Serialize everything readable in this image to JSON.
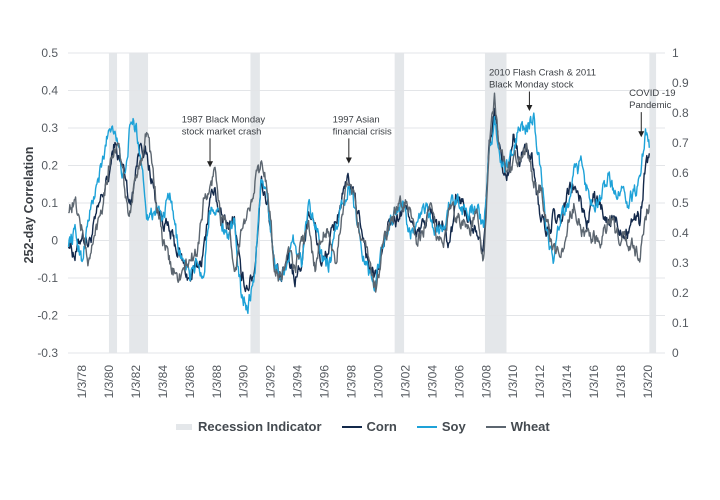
{
  "chart_data": {
    "type": "line",
    "title": "",
    "ylabel": "252-day Correlation",
    "ylim": [
      -0.3,
      0.5
    ],
    "y2lim": [
      0,
      1
    ],
    "yticks": [
      "0.5",
      "0.4",
      "0.3",
      "0.2",
      "0.1",
      "0",
      "-0.1",
      "-0.2",
      "-0.3"
    ],
    "y2ticks": [
      "1",
      "0.9",
      "0.8",
      "0.7",
      "0.6",
      "0.5",
      "0.4",
      "0.3",
      "0.2",
      "0.1",
      "0"
    ],
    "xlim": [
      1977.0,
      2020.6
    ],
    "xticks": [
      {
        "label": "1/3/78",
        "x": 1978.0
      },
      {
        "label": "1/3/80",
        "x": 1980.0
      },
      {
        "label": "1/3/82",
        "x": 1982.0
      },
      {
        "label": "1/3/84",
        "x": 1984.0
      },
      {
        "label": "1/3/86",
        "x": 1986.0
      },
      {
        "label": "1/3/88",
        "x": 1988.0
      },
      {
        "label": "1/3/90",
        "x": 1990.0
      },
      {
        "label": "1/3/92",
        "x": 1992.0
      },
      {
        "label": "1/3/94",
        "x": 1994.0
      },
      {
        "label": "1/3/96",
        "x": 1996.0
      },
      {
        "label": "1/3/98",
        "x": 1998.0
      },
      {
        "label": "1/3/00",
        "x": 2000.0
      },
      {
        "label": "1/3/02",
        "x": 2002.0
      },
      {
        "label": "1/3/04",
        "x": 2004.0
      },
      {
        "label": "1/3/06",
        "x": 2006.0
      },
      {
        "label": "1/3/08",
        "x": 2008.0
      },
      {
        "label": "1/3/10",
        "x": 2010.0
      },
      {
        "label": "1/3/12",
        "x": 2012.0
      },
      {
        "label": "1/3/14",
        "x": 2014.0
      },
      {
        "label": "1/3/16",
        "x": 2016.0
      },
      {
        "label": "1/3/18",
        "x": 2018.0
      },
      {
        "label": "1/3/20",
        "x": 2020.0
      }
    ],
    "grid": true,
    "legend_position": "bottom",
    "recessions": [
      [
        1980.0,
        1980.6
      ],
      [
        1981.5,
        1982.9
      ],
      [
        1990.5,
        1991.2
      ],
      [
        2001.2,
        2001.9
      ],
      [
        2007.9,
        2009.5
      ],
      [
        2020.1,
        2020.6
      ]
    ],
    "series": [
      {
        "name": "Corn",
        "color": "#13294b",
        "x": [
          1977.0,
          1977.5,
          1978.0,
          1978.5,
          1979.0,
          1979.5,
          1980.0,
          1980.4,
          1980.8,
          1981.2,
          1981.6,
          1982.0,
          1982.4,
          1982.8,
          1983.2,
          1983.6,
          1984.0,
          1984.5,
          1985.0,
          1985.5,
          1986.0,
          1986.5,
          1987.0,
          1987.5,
          1987.9,
          1988.3,
          1988.8,
          1989.3,
          1989.8,
          1990.3,
          1990.8,
          1991.3,
          1991.8,
          1992.3,
          1992.8,
          1993.3,
          1993.8,
          1994.3,
          1994.8,
          1995.3,
          1995.8,
          1996.3,
          1996.8,
          1997.3,
          1997.8,
          1998.3,
          1998.8,
          1999.3,
          1999.8,
          2000.3,
          2000.8,
          2001.3,
          2001.8,
          2002.3,
          2002.8,
          2003.3,
          2003.8,
          2004.3,
          2004.8,
          2005.3,
          2005.8,
          2006.3,
          2006.8,
          2007.3,
          2007.8,
          2008.2,
          2008.6,
          2009.0,
          2009.5,
          2010.0,
          2010.5,
          2011.0,
          2011.5,
          2012.0,
          2012.5,
          2013.0,
          2013.5,
          2014.0,
          2014.5,
          2015.0,
          2015.5,
          2016.0,
          2016.5,
          2017.0,
          2017.5,
          2018.0,
          2018.5,
          2019.0,
          2019.4,
          2019.8,
          2020.1
        ],
        "y": [
          0.0,
          -0.04,
          0.02,
          -0.01,
          0.05,
          0.12,
          0.17,
          0.26,
          0.21,
          0.18,
          0.09,
          0.2,
          0.27,
          0.22,
          0.16,
          0.08,
          0.06,
          0.02,
          -0.02,
          -0.06,
          -0.11,
          -0.07,
          -0.04,
          0.12,
          0.13,
          0.06,
          0.04,
          0.06,
          -0.1,
          -0.12,
          -0.08,
          0.16,
          0.1,
          -0.08,
          -0.11,
          -0.04,
          -0.1,
          -0.06,
          0.09,
          0.03,
          -0.07,
          -0.02,
          0.05,
          0.11,
          0.16,
          0.1,
          0.03,
          -0.07,
          -0.1,
          -0.03,
          0.05,
          0.05,
          0.08,
          0.08,
          0.0,
          0.04,
          0.08,
          0.04,
          0.04,
          -0.02,
          0.12,
          0.1,
          0.05,
          0.04,
          -0.02,
          0.25,
          0.34,
          0.24,
          0.15,
          0.28,
          0.22,
          0.25,
          0.2,
          0.07,
          0.02,
          0.06,
          0.04,
          0.12,
          0.15,
          0.1,
          0.05,
          0.12,
          0.08,
          0.04,
          0.06,
          0.03,
          0.03,
          0.07,
          0.05,
          0.2,
          0.23
        ]
      },
      {
        "name": "Soy",
        "color": "#1ea2d8",
        "x": [
          1977.0,
          1977.5,
          1978.0,
          1978.5,
          1979.0,
          1979.5,
          1980.0,
          1980.4,
          1980.8,
          1981.2,
          1981.6,
          1982.0,
          1982.4,
          1982.8,
          1983.2,
          1983.6,
          1984.0,
          1984.5,
          1985.0,
          1985.5,
          1986.0,
          1986.5,
          1987.0,
          1987.5,
          1987.9,
          1988.3,
          1988.8,
          1989.3,
          1989.8,
          1990.3,
          1990.8,
          1991.3,
          1991.8,
          1992.3,
          1992.8,
          1993.3,
          1993.8,
          1994.3,
          1994.8,
          1995.3,
          1995.8,
          1996.3,
          1996.8,
          1997.3,
          1997.8,
          1998.3,
          1998.8,
          1999.3,
          1999.8,
          2000.3,
          2000.8,
          2001.3,
          2001.8,
          2002.3,
          2002.8,
          2003.3,
          2003.8,
          2004.3,
          2004.8,
          2005.3,
          2005.8,
          2006.3,
          2006.8,
          2007.3,
          2007.8,
          2008.2,
          2008.6,
          2009.0,
          2009.5,
          2010.0,
          2010.5,
          2011.0,
          2011.5,
          2012.0,
          2012.5,
          2013.0,
          2013.5,
          2014.0,
          2014.5,
          2015.0,
          2015.5,
          2016.0,
          2016.5,
          2017.0,
          2017.5,
          2018.0,
          2018.5,
          2019.0,
          2019.4,
          2019.8,
          2020.1
        ],
        "y": [
          0.0,
          0.02,
          -0.05,
          0.06,
          0.13,
          0.2,
          0.3,
          0.31,
          0.22,
          0.15,
          0.32,
          0.3,
          0.22,
          0.08,
          0.07,
          0.1,
          0.05,
          0.12,
          0.01,
          -0.06,
          -0.1,
          -0.05,
          -0.1,
          0.09,
          0.1,
          0.05,
          0.02,
          0.04,
          -0.14,
          -0.17,
          -0.1,
          0.17,
          0.1,
          -0.06,
          -0.1,
          -0.04,
          0.0,
          -0.06,
          0.1,
          0.06,
          -0.05,
          -0.08,
          0.02,
          0.1,
          0.15,
          0.07,
          -0.02,
          -0.08,
          -0.12,
          0.0,
          0.04,
          0.08,
          0.1,
          0.02,
          0.02,
          0.09,
          0.07,
          0.02,
          0.04,
          0.1,
          0.1,
          0.08,
          0.08,
          0.1,
          0.02,
          0.22,
          0.32,
          0.22,
          0.19,
          0.24,
          0.3,
          0.3,
          0.33,
          0.2,
          0.03,
          -0.07,
          0.07,
          0.08,
          0.17,
          0.2,
          0.14,
          0.1,
          0.12,
          0.17,
          0.13,
          0.14,
          0.1,
          0.13,
          0.15,
          0.28,
          0.25
        ]
      },
      {
        "name": "Wheat",
        "color": "#5c6670",
        "x": [
          1977.0,
          1977.5,
          1978.0,
          1978.5,
          1979.0,
          1979.5,
          1980.0,
          1980.4,
          1980.8,
          1981.2,
          1981.6,
          1982.0,
          1982.4,
          1982.8,
          1983.2,
          1983.6,
          1984.0,
          1984.5,
          1985.0,
          1985.5,
          1986.0,
          1986.5,
          1987.0,
          1987.5,
          1987.9,
          1988.3,
          1988.8,
          1989.3,
          1989.8,
          1990.3,
          1990.8,
          1991.3,
          1991.8,
          1992.3,
          1992.8,
          1993.3,
          1993.8,
          1994.3,
          1994.8,
          1995.3,
          1995.8,
          1996.3,
          1996.8,
          1997.3,
          1997.8,
          1998.3,
          1998.8,
          1999.3,
          1999.8,
          2000.3,
          2000.8,
          2001.3,
          2001.8,
          2002.3,
          2002.8,
          2003.3,
          2003.8,
          2004.3,
          2004.8,
          2005.3,
          2005.8,
          2006.3,
          2006.8,
          2007.3,
          2007.8,
          2008.2,
          2008.6,
          2009.0,
          2009.5,
          2010.0,
          2010.5,
          2011.0,
          2011.5,
          2012.0,
          2012.5,
          2013.0,
          2013.5,
          2014.0,
          2014.5,
          2015.0,
          2015.5,
          2016.0,
          2016.5,
          2017.0,
          2017.5,
          2018.0,
          2018.5,
          2019.0,
          2019.4,
          2019.8,
          2020.1
        ],
        "y": [
          0.09,
          0.1,
          0.03,
          -0.06,
          0.02,
          0.1,
          0.2,
          0.25,
          0.24,
          0.12,
          0.06,
          0.18,
          0.22,
          0.3,
          0.2,
          0.08,
          0.0,
          -0.06,
          -0.1,
          -0.09,
          -0.05,
          -0.04,
          0.1,
          0.13,
          0.2,
          0.06,
          0.05,
          -0.1,
          0.02,
          0.06,
          0.16,
          0.2,
          0.14,
          -0.08,
          -0.1,
          -0.03,
          -0.08,
          0.0,
          0.03,
          -0.07,
          0.01,
          0.04,
          -0.08,
          0.07,
          0.17,
          0.1,
          -0.02,
          -0.05,
          -0.13,
          -0.02,
          0.04,
          0.08,
          0.1,
          0.1,
          -0.02,
          0.02,
          0.08,
          0.02,
          0.0,
          0.08,
          0.07,
          0.05,
          0.03,
          0.07,
          -0.06,
          0.24,
          0.38,
          0.25,
          0.19,
          0.22,
          0.23,
          0.25,
          0.15,
          0.14,
          0.05,
          -0.02,
          -0.05,
          0.04,
          0.1,
          0.03,
          0.0,
          0.01,
          -0.02,
          0.05,
          0.03,
          0.0,
          0.0,
          -0.01,
          -0.05,
          0.07,
          0.1
        ]
      }
    ],
    "annotations": [
      {
        "lines": [
          "1987 Black Monday",
          "stock market crash"
        ],
        "x": 1987.5,
        "y": 0.19,
        "text_left_x": 1985.4,
        "text_top_y": 0.315
      },
      {
        "lines": [
          "1997 Asian",
          "financial crisis"
        ],
        "x": 1997.8,
        "y": 0.2,
        "text_left_x": 1996.6,
        "text_top_y": 0.315
      },
      {
        "lines": [
          "2010 Flash Crash & 2011",
          "Black Monday stock"
        ],
        "x": 2011.2,
        "y": 0.34,
        "text_left_x": 2008.2,
        "text_top_y": 0.44
      },
      {
        "lines": [
          "COVID  -19",
          "Pandemic"
        ],
        "x": 2019.5,
        "y": 0.27,
        "text_left_x": 2018.6,
        "text_top_y": 0.385
      }
    ]
  },
  "legend": {
    "recession_label": "Recession Indicator",
    "corn_label": "Corn",
    "soy_label": "Soy",
    "wheat_label": "Wheat"
  }
}
